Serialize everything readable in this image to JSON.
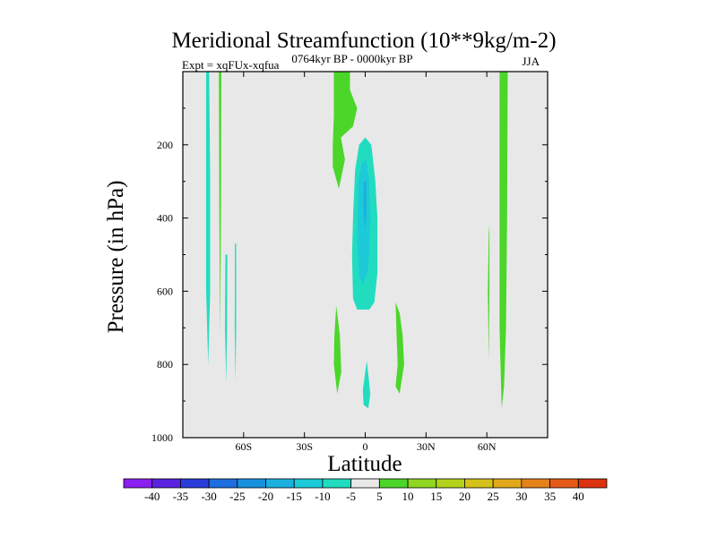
{
  "chart_data": {
    "type": "heatmap",
    "title": "Meridional Streamfunction (10**9kg/m-2)",
    "subtitle_left": "Expt = xqFUx-xqfua",
    "subtitle_center": "0764kyr BP - 0000kyr BP",
    "subtitle_right": "JJA",
    "xlabel": "Latitude",
    "ylabel": "Pressure (in hPa)",
    "xlim": [
      -90,
      90
    ],
    "ylim": [
      1000,
      0
    ],
    "x_ticks": [
      {
        "value": -60,
        "label": "60S"
      },
      {
        "value": -30,
        "label": "30S"
      },
      {
        "value": 0,
        "label": "0"
      },
      {
        "value": 30,
        "label": "30N"
      },
      {
        "value": 60,
        "label": "60N"
      }
    ],
    "y_ticks": [
      {
        "value": 200,
        "label": "200"
      },
      {
        "value": 400,
        "label": "400"
      },
      {
        "value": 600,
        "label": "600"
      },
      {
        "value": 800,
        "label": "800"
      },
      {
        "value": 1000,
        "label": "1000"
      }
    ],
    "background_color": "#e8e8e8",
    "colorbar": {
      "labels": [
        "-40",
        "-35",
        "-30",
        "-25",
        "-20",
        "-15",
        "-10",
        "-5",
        "5",
        "10",
        "15",
        "20",
        "25",
        "30",
        "35",
        "40"
      ],
      "colors": [
        "#8a1ff0",
        "#5a22e0",
        "#2a3cd8",
        "#1e6ee0",
        "#1890e0",
        "#1ab0e0",
        "#1ccad8",
        "#22dcc0",
        "#e8e8e8",
        "#4cd62a",
        "#8ed622",
        "#b4d21c",
        "#d4c21a",
        "#e0a81a",
        "#e4821a",
        "#e45a16",
        "#dc3210"
      ]
    },
    "features": [
      {
        "name": "blob-neg-75s",
        "value_class": -5,
        "points": [
          [
            -78.5,
            0
          ],
          [
            -77,
            0
          ],
          [
            -76.5,
            300
          ],
          [
            -76.5,
            600
          ],
          [
            -77.5,
            800
          ],
          [
            -78.5,
            600
          ],
          [
            -78.5,
            200
          ]
        ]
      },
      {
        "name": "blob-pos-71s",
        "value_class": 5,
        "points": [
          [
            -72.2,
            0
          ],
          [
            -71,
            0
          ],
          [
            -71.2,
            400
          ],
          [
            -71.6,
            720
          ],
          [
            -72,
            400
          ]
        ]
      },
      {
        "name": "blob-neg-68s",
        "value_class": -5,
        "points": [
          [
            -69,
            500
          ],
          [
            -68,
            500
          ],
          [
            -68.2,
            700
          ],
          [
            -68.6,
            850
          ],
          [
            -69.2,
            700
          ]
        ]
      },
      {
        "name": "blob-neg-64s",
        "value_class": -5,
        "points": [
          [
            -64.3,
            470
          ],
          [
            -63.7,
            470
          ],
          [
            -63.7,
            700
          ],
          [
            -64,
            850
          ],
          [
            -64.4,
            700
          ]
        ]
      },
      {
        "name": "blob-pos-15s-upper",
        "value_class": 5,
        "points": [
          [
            -15.5,
            0
          ],
          [
            -7.5,
            0
          ],
          [
            -7.5,
            50
          ],
          [
            -4,
            100
          ],
          [
            -6,
            150
          ],
          [
            -12,
            180
          ],
          [
            -10,
            240
          ],
          [
            -13,
            320
          ],
          [
            -16,
            260
          ],
          [
            -16,
            200
          ],
          [
            -15.5,
            120
          ]
        ]
      },
      {
        "name": "blob-neg-equator-core",
        "value_class": -5,
        "points": [
          [
            -6,
            400
          ],
          [
            -5,
            270
          ],
          [
            -3,
            200
          ],
          [
            0,
            180
          ],
          [
            3,
            200
          ],
          [
            5,
            300
          ],
          [
            6,
            400
          ],
          [
            6,
            550
          ],
          [
            4.5,
            630
          ],
          [
            2,
            650
          ],
          [
            -4,
            650
          ],
          [
            -6,
            620
          ],
          [
            -6.5,
            500
          ]
        ]
      },
      {
        "name": "blob-neg-equator-inner",
        "value_class": -10,
        "points": [
          [
            -3.5,
            300
          ],
          [
            -1.5,
            250
          ],
          [
            0.5,
            240
          ],
          [
            2,
            300
          ],
          [
            2.5,
            400
          ],
          [
            1.5,
            540
          ],
          [
            -1,
            580
          ],
          [
            -3,
            560
          ],
          [
            -4,
            450
          ]
        ]
      },
      {
        "name": "blob-neg-equator-deep",
        "value_class": -15,
        "points": [
          [
            -0.8,
            300
          ],
          [
            0.4,
            300
          ],
          [
            0.6,
            380
          ],
          [
            0,
            430
          ],
          [
            -0.9,
            380
          ]
        ]
      },
      {
        "name": "blob-pos-15s-lower",
        "value_class": 5,
        "points": [
          [
            -14.3,
            640
          ],
          [
            -12.5,
            720
          ],
          [
            -11.8,
            820
          ],
          [
            -13.8,
            880
          ],
          [
            -15.5,
            800
          ],
          [
            -15.2,
            720
          ]
        ]
      },
      {
        "name": "blob-neg-1s-lower",
        "value_class": -5,
        "points": [
          [
            0.8,
            790
          ],
          [
            2.5,
            880
          ],
          [
            1.5,
            920
          ],
          [
            -0.8,
            910
          ],
          [
            -1.2,
            870
          ],
          [
            -0.2,
            830
          ]
        ]
      },
      {
        "name": "blob-pos-16n",
        "value_class": 5,
        "points": [
          [
            15,
            630
          ],
          [
            17,
            660
          ],
          [
            18.5,
            720
          ],
          [
            19.2,
            800
          ],
          [
            17,
            880
          ],
          [
            15,
            860
          ],
          [
            16,
            800
          ],
          [
            15.5,
            720
          ]
        ]
      },
      {
        "name": "blob-pos-61n",
        "value_class": 5,
        "points": [
          [
            61,
            440
          ],
          [
            61.3,
            420
          ],
          [
            61.3,
            600
          ],
          [
            61,
            790
          ],
          [
            60.5,
            600
          ]
        ]
      },
      {
        "name": "blob-pos-68n",
        "value_class": 5,
        "points": [
          [
            66.3,
            0
          ],
          [
            70.3,
            0
          ],
          [
            70,
            400
          ],
          [
            69.5,
            700
          ],
          [
            68.5,
            860
          ],
          [
            67.3,
            920
          ],
          [
            66.3,
            700
          ],
          [
            66.3,
            300
          ]
        ]
      }
    ]
  }
}
